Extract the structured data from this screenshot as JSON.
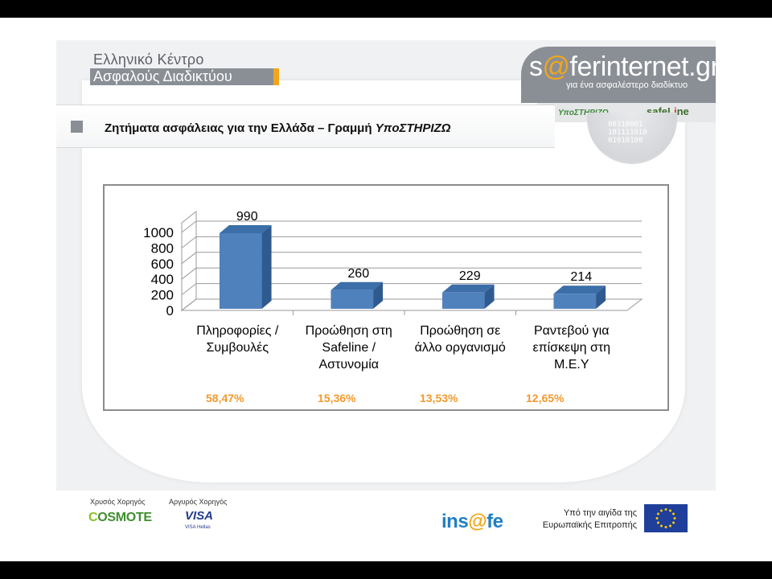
{
  "organization": {
    "line1": "Ελληνικό Κέντρο",
    "line2": "Ασφαλούς Διαδικτύου"
  },
  "brand": {
    "name_prefix": "s",
    "name_at": "@",
    "name_rest": "ferinternet.gr",
    "tagline": "για ένα ασφαλέστερο διαδίκτυο",
    "partner1": "ΥποΣΤΗΡΙΖΩ",
    "partner2_a": "safeL",
    "partner2_b": "i",
    "partner2_c": "ne",
    "globe_digits": "00110001\n101111010\n01010100"
  },
  "slide": {
    "title_main": "Ζητήματα ασφάλειας για την Ελλάδα – Γραμμή ",
    "title_emph": "ΥποΣΤΗΡΙΖΩ"
  },
  "chart_data": {
    "type": "bar",
    "categories": [
      [
        "Πληροφορίες /",
        "Συμβουλές"
      ],
      [
        "Προώθηση στη",
        "Safeline /",
        "Αστυνομία"
      ],
      [
        "Προώθηση σε",
        "άλλο οργανισμό"
      ],
      [
        "Ραντεβού για",
        "επίσκεψη στη",
        "Μ.Ε.Υ"
      ]
    ],
    "values": [
      990,
      260,
      229,
      214
    ],
    "data_labels": [
      "990",
      "260",
      "229",
      "214"
    ],
    "percentages": [
      "58,47%",
      "15,36%",
      "13,53%",
      "12,65%"
    ],
    "ylim": [
      0,
      1000
    ],
    "yticks": [
      0,
      200,
      400,
      600,
      800,
      1000
    ],
    "grid": true,
    "three_d": true,
    "bar_color": "#4f81bd",
    "percent_color": "#f29a2e"
  },
  "footer": {
    "gold_sponsor_label": "Χρυσός Χορηγός",
    "silver_sponsor_label": "Αργυρός Χορηγός",
    "cosmote_c": "C",
    "cosmote_rest": "OSMOTE",
    "visa": "VISA",
    "visa_sub": "VISA Hellas",
    "insafe_a": "ins",
    "insafe_at": "@",
    "insafe_b": "fe",
    "eu_line1": "Υπό την αιγίδα της",
    "eu_line2": "Ευρωπαϊκής Επιτροπής"
  }
}
